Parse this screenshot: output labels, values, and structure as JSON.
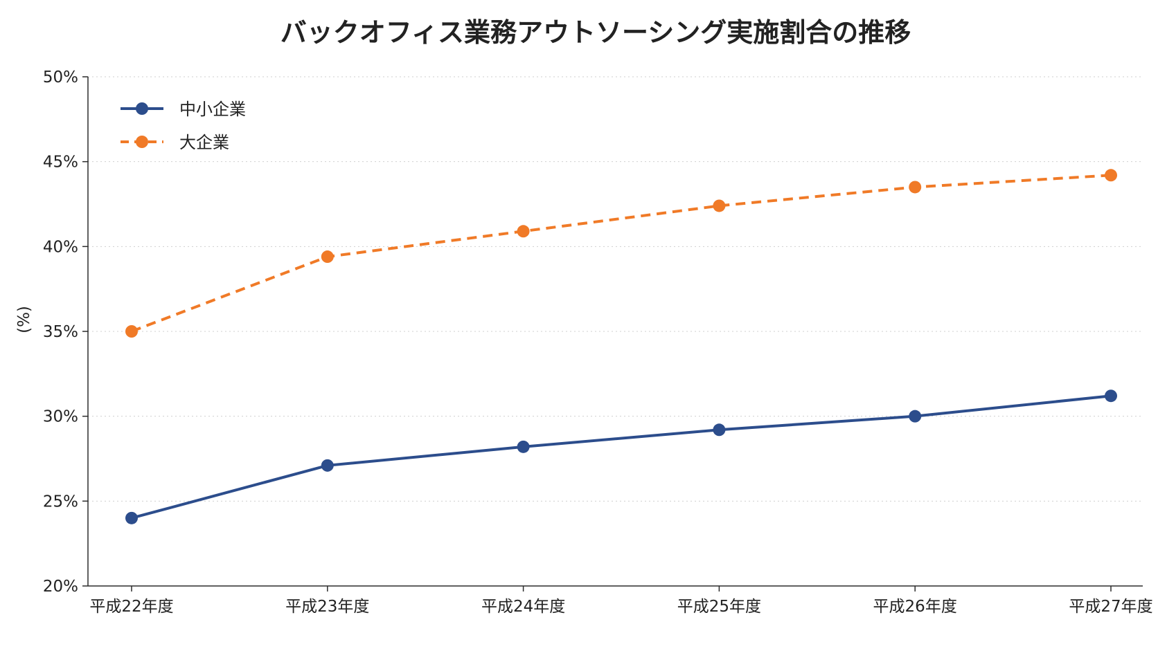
{
  "chart_data": {
    "type": "line",
    "title": "バックオフィス業務アウトソーシング実施割合の推移",
    "xlabel": "",
    "ylabel": "(%)",
    "categories": [
      "平成22年度",
      "平成23年度",
      "平成24年度",
      "平成25年度",
      "平成26年度",
      "平成27年度"
    ],
    "ylim": [
      20,
      50
    ],
    "yticks": [
      "20%",
      "25%",
      "30%",
      "35%",
      "40%",
      "45%",
      "50%"
    ],
    "grid": "horizontal-dotted",
    "legend_position": "top-left",
    "series": [
      {
        "name": "中小企業",
        "values": [
          24.0,
          27.1,
          28.2,
          29.2,
          30.0,
          31.2
        ],
        "color": "#2c4d8c",
        "dashed": false
      },
      {
        "name": "大企業",
        "values": [
          35.0,
          39.4,
          40.9,
          42.4,
          43.5,
          44.2
        ],
        "color": "#f07a27",
        "dashed": true
      }
    ]
  }
}
